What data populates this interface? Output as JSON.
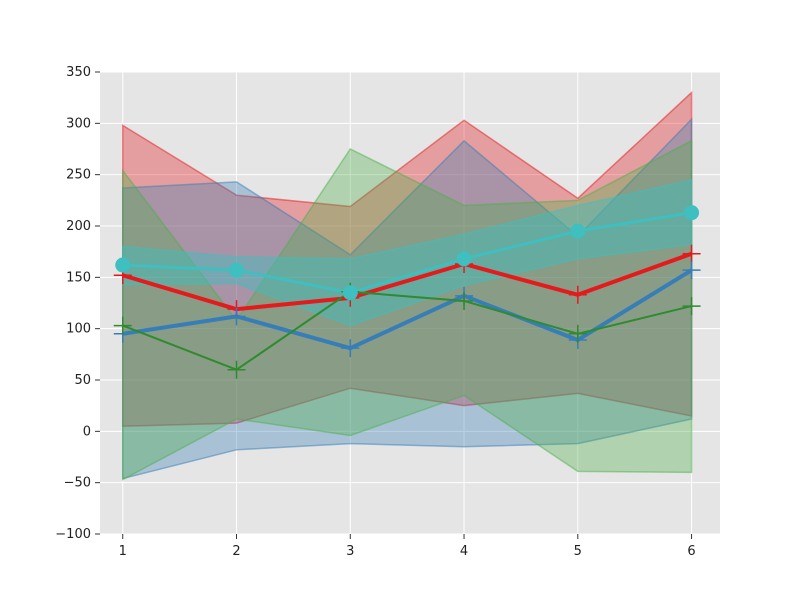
{
  "chart_data": {
    "type": "line",
    "x": [
      1,
      2,
      3,
      4,
      5,
      6
    ],
    "xlim": [
      0.8,
      6.25
    ],
    "ylim": [
      -100,
      350
    ],
    "xticks": [
      "1",
      "2",
      "3",
      "4",
      "5",
      "6"
    ],
    "yticks": [
      "−100",
      "−50",
      "0",
      "50",
      "100",
      "150",
      "200",
      "250",
      "300",
      "350"
    ],
    "ytick_values": [
      -100,
      -50,
      0,
      50,
      100,
      150,
      200,
      250,
      300,
      350
    ],
    "grid": true,
    "legend": "none",
    "background_color": "#e5e5e5",
    "grid_color": "#ffffff",
    "series": [
      {
        "color": "#e41a1c",
        "marker": "plus",
        "values": [
          152,
          119,
          130,
          163,
          133,
          173
        ],
        "band_upper": [
          298,
          230,
          219,
          303,
          227,
          330
        ],
        "band_lower": [
          5,
          8,
          42,
          25,
          37,
          15
        ],
        "band_alpha": 0.35,
        "line_width": 4
      },
      {
        "color": "#377eb8",
        "marker": "plus",
        "values": [
          95,
          112,
          81,
          132,
          89,
          157
        ],
        "band_upper": [
          237,
          243,
          172,
          283,
          190,
          304
        ],
        "band_lower": [
          -46,
          -18,
          -12,
          -15,
          -12,
          12
        ],
        "band_alpha": 0.35,
        "line_width": 4
      },
      {
        "color": "#4daf4a",
        "marker": "plus",
        "values": [
          103,
          60,
          136,
          127,
          95,
          122
        ],
        "band_upper": [
          254,
          108,
          275,
          220,
          225,
          283
        ],
        "band_lower": [
          -47,
          12,
          -4,
          35,
          -39,
          -40
        ],
        "band_alpha": 0.35,
        "line_width": 2,
        "line_color": "#2e8b2e"
      },
      {
        "color": "#3fbfbf",
        "marker": "circle",
        "values": [
          162,
          157,
          135,
          168,
          195,
          213
        ],
        "band_upper": [
          180,
          170,
          168,
          192,
          220,
          245
        ],
        "band_lower": [
          143,
          144,
          103,
          142,
          168,
          182
        ],
        "band_alpha": 0.45,
        "line_width": 3
      }
    ]
  }
}
